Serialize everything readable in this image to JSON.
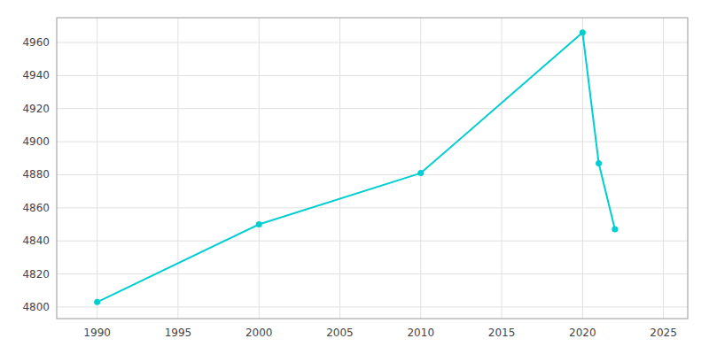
{
  "chart_data": {
    "type": "line",
    "x": [
      1990,
      2000,
      2010,
      2020,
      2021,
      2022
    ],
    "values": [
      4803,
      4850,
      4881,
      4966,
      4887,
      4847
    ],
    "color": "#00CED1",
    "marker": "circle",
    "xlim": [
      1987.5,
      2026.5
    ],
    "ylim": [
      4793,
      4975
    ],
    "xticks": [
      1990,
      1995,
      2000,
      2005,
      2010,
      2015,
      2020,
      2025
    ],
    "yticks": [
      4800,
      4820,
      4840,
      4860,
      4880,
      4900,
      4920,
      4940,
      4960
    ],
    "grid": true
  }
}
